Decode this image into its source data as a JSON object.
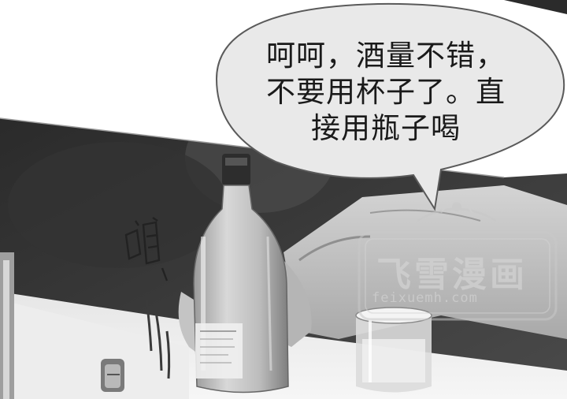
{
  "speech_bubble": {
    "line1": "呵呵，酒量不错，",
    "line2": "不要用杯子了。直",
    "line3": "接用瓶子喝"
  },
  "sound_effect": {
    "text": "啪"
  },
  "watermark": {
    "title": "飞雪漫画",
    "url": "feixuemh.com"
  },
  "colors": {
    "bubble_fill": "#e9e9e9",
    "bubble_stroke": "#5a5a5a",
    "text": "#1a1a1a"
  }
}
